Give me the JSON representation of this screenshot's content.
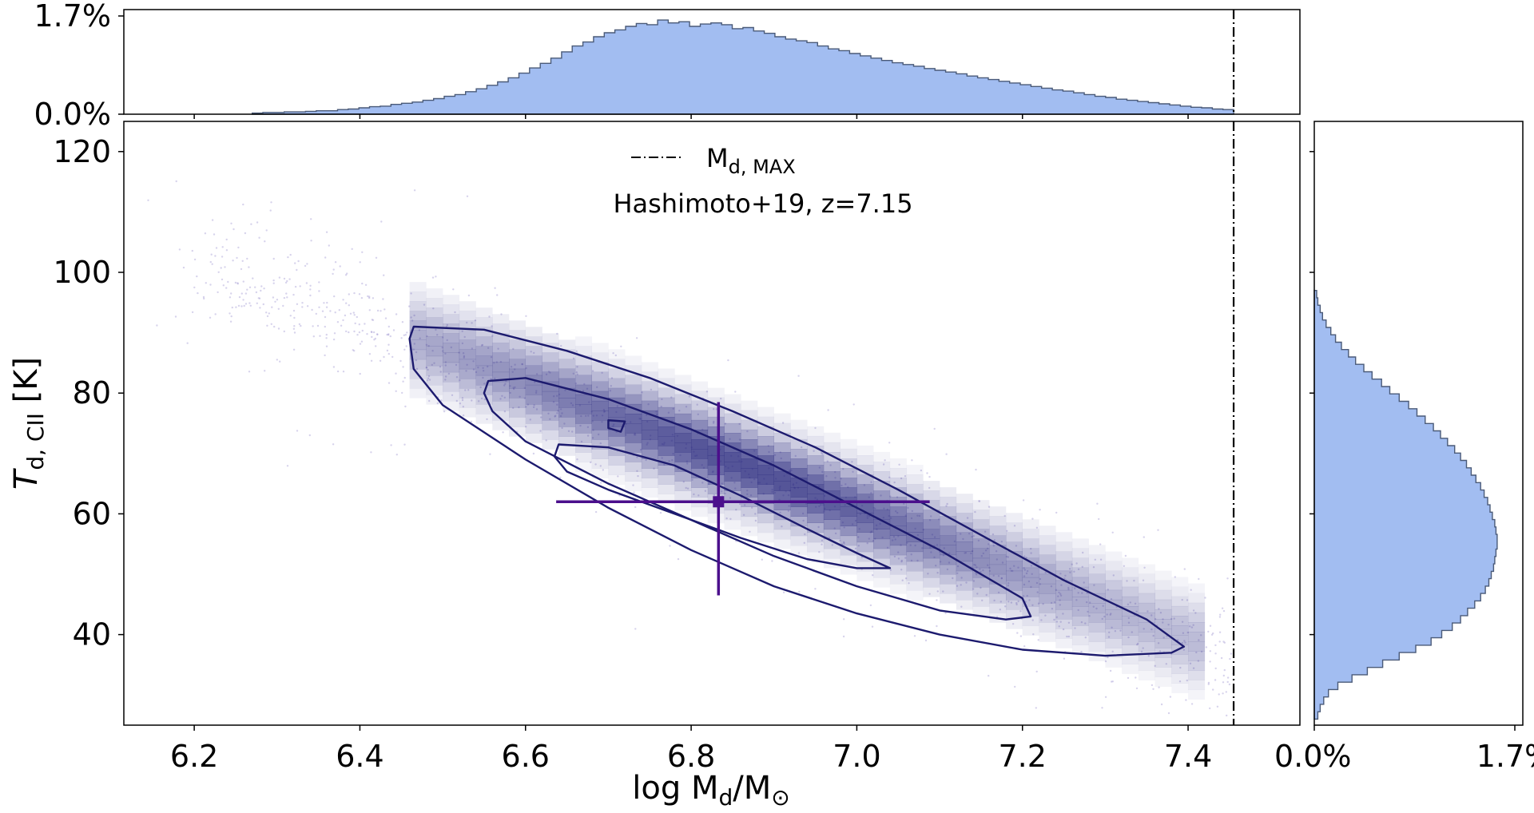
{
  "chart_data": [
    {
      "type": "scatter",
      "name": "joint",
      "title": "",
      "annotation": "Hashimoto+19, z=7.15",
      "xlabel": "log M",
      "xlabel_sub": "d",
      "xlabel_tail": "/M",
      "xlabel_sub2": "⊙",
      "ylabel": "T",
      "ylabel_sub": "d, CII",
      "ylabel_tail": " [K]",
      "xlim": [
        6.115,
        7.535
      ],
      "ylim": [
        25,
        125
      ],
      "xticks": [
        6.2,
        6.4,
        6.6,
        6.8,
        7.0,
        7.2,
        7.4
      ],
      "xtick_labels": [
        "6.2",
        "6.4",
        "6.6",
        "6.8",
        "7.0",
        "7.2",
        "7.4"
      ],
      "yticks": [
        40,
        60,
        80,
        100,
        120
      ],
      "ytick_labels": [
        "40",
        "60",
        "80",
        "100",
        "120"
      ],
      "legend": {
        "label": "M",
        "label_sub": "d, MAX",
        "location": "upper center"
      },
      "md_max": 7.455,
      "point_estimate": {
        "x": 6.833,
        "y": 62,
        "x_err": [
          0.196,
          0.255
        ],
        "y_err": [
          15.5,
          16.5
        ]
      },
      "ridge": {
        "x_start": 6.46,
        "y_start": 88,
        "x_end": 7.42,
        "y_end": 37
      },
      "contours": [
        {
          "level": "outer",
          "points": [
            [
              6.465,
              91
            ],
            [
              6.55,
              90.5
            ],
            [
              6.65,
              87
            ],
            [
              6.75,
              82.5
            ],
            [
              6.85,
              77
            ],
            [
              6.95,
              71
            ],
            [
              7.05,
              64
            ],
            [
              7.15,
              56.5
            ],
            [
              7.25,
              49
            ],
            [
              7.35,
              42.5
            ],
            [
              7.395,
              38
            ],
            [
              7.38,
              37
            ],
            [
              7.3,
              36.5
            ],
            [
              7.2,
              37.5
            ],
            [
              7.1,
              40
            ],
            [
              7.0,
              43.5
            ],
            [
              6.9,
              48
            ],
            [
              6.8,
              54
            ],
            [
              6.7,
              61
            ],
            [
              6.6,
              69
            ],
            [
              6.5,
              78
            ],
            [
              6.465,
              84
            ],
            [
              6.46,
              89
            ]
          ]
        },
        {
          "level": "middle",
          "points": [
            [
              6.555,
              82
            ],
            [
              6.6,
              82.5
            ],
            [
              6.7,
              79
            ],
            [
              6.8,
              74
            ],
            [
              6.9,
              68
            ],
            [
              7.0,
              61
            ],
            [
              7.1,
              54
            ],
            [
              7.2,
              46
            ],
            [
              7.21,
              43
            ],
            [
              7.18,
              42.5
            ],
            [
              7.1,
              44
            ],
            [
              7.0,
              48
            ],
            [
              6.9,
              53
            ],
            [
              6.8,
              59
            ],
            [
              6.7,
              65
            ],
            [
              6.6,
              72
            ],
            [
              6.56,
              77
            ],
            [
              6.55,
              80
            ]
          ]
        },
        {
          "level": "inner",
          "points": [
            [
              6.64,
              71.5
            ],
            [
              6.7,
              71
            ],
            [
              6.78,
              68
            ],
            [
              6.86,
              63
            ],
            [
              6.94,
              57.5
            ],
            [
              7.0,
              53.5
            ],
            [
              7.04,
              51
            ],
            [
              7.0,
              51
            ],
            [
              6.94,
              52.5
            ],
            [
              6.86,
              56
            ],
            [
              6.78,
              60
            ],
            [
              6.7,
              64
            ],
            [
              6.65,
              67
            ],
            [
              6.635,
              69.5
            ]
          ]
        },
        {
          "level": "core",
          "points": [
            [
              6.7,
              75.5
            ],
            [
              6.72,
              75.3
            ],
            [
              6.715,
              73.6
            ],
            [
              6.7,
              74.2
            ]
          ]
        }
      ]
    },
    {
      "type": "bar",
      "name": "top-histogram",
      "orientation": "vertical",
      "ylim_max": 1.7,
      "ytick_labels": [
        "0.0%",
        "1.7%"
      ],
      "range": [
        6.27,
        7.455
      ],
      "values": [
        0.02,
        0.03,
        0.03,
        0.04,
        0.04,
        0.05,
        0.06,
        0.06,
        0.08,
        0.09,
        0.11,
        0.13,
        0.14,
        0.17,
        0.19,
        0.21,
        0.24,
        0.27,
        0.31,
        0.34,
        0.39,
        0.44,
        0.5,
        0.56,
        0.63,
        0.71,
        0.8,
        0.88,
        0.97,
        1.08,
        1.18,
        1.25,
        1.34,
        1.41,
        1.46,
        1.52,
        1.57,
        1.55,
        1.63,
        1.58,
        1.6,
        1.52,
        1.56,
        1.58,
        1.55,
        1.48,
        1.5,
        1.44,
        1.4,
        1.34,
        1.3,
        1.27,
        1.24,
        1.18,
        1.13,
        1.1,
        1.05,
        1.01,
        0.97,
        0.93,
        0.89,
        0.86,
        0.83,
        0.79,
        0.76,
        0.73,
        0.7,
        0.66,
        0.63,
        0.6,
        0.57,
        0.54,
        0.51,
        0.48,
        0.45,
        0.42,
        0.4,
        0.37,
        0.34,
        0.31,
        0.29,
        0.26,
        0.24,
        0.22,
        0.2,
        0.18,
        0.16,
        0.14,
        0.12,
        0.11,
        0.09,
        0.08
      ]
    },
    {
      "type": "bar",
      "name": "right-histogram",
      "orientation": "horizontal",
      "xlim_max": 1.7,
      "xtick_labels": [
        "0.0%",
        "1.7%"
      ],
      "range": [
        26,
        97
      ],
      "values": [
        0.03,
        0.05,
        0.08,
        0.12,
        0.2,
        0.32,
        0.45,
        0.58,
        0.72,
        0.86,
        0.99,
        1.08,
        1.17,
        1.24,
        1.3,
        1.36,
        1.41,
        1.45,
        1.48,
        1.5,
        1.52,
        1.53,
        1.54,
        1.55,
        1.55,
        1.54,
        1.53,
        1.51,
        1.49,
        1.47,
        1.44,
        1.41,
        1.37,
        1.33,
        1.29,
        1.24,
        1.19,
        1.13,
        1.07,
        1.01,
        0.94,
        0.87,
        0.8,
        0.72,
        0.64,
        0.57,
        0.49,
        0.42,
        0.35,
        0.29,
        0.23,
        0.18,
        0.14,
        0.1,
        0.07,
        0.05,
        0.03,
        0.02
      ]
    }
  ]
}
